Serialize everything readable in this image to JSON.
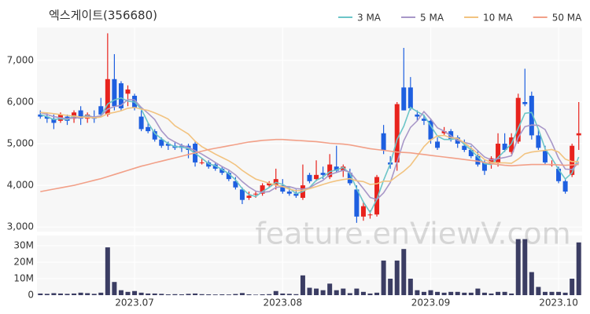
{
  "chart_data": {
    "type": "candlestick",
    "title": "엑스게이트(356680)",
    "watermark": "feature.enViewV.com",
    "categories": [
      null,
      null,
      null,
      null,
      null,
      null,
      null,
      null,
      null,
      null,
      null,
      null,
      null,
      null,
      null,
      null,
      null,
      null,
      null,
      null,
      null,
      null,
      null,
      null,
      null,
      null,
      null,
      null,
      null,
      null,
      null,
      null,
      null,
      null,
      null,
      null,
      null,
      null,
      null,
      null,
      null,
      null,
      null,
      null,
      null,
      null,
      null,
      null,
      null,
      null,
      null,
      null,
      null,
      null,
      null,
      null,
      null,
      null,
      null,
      null,
      null,
      null,
      null,
      null,
      null,
      null,
      null,
      null,
      null,
      null,
      null,
      null,
      null,
      null,
      null,
      null,
      null,
      null,
      null,
      null,
      null
    ],
    "xticks": [
      {
        "value": 14,
        "label": "2023.07"
      },
      {
        "value": 36,
        "label": "2023.08"
      },
      {
        "value": 58,
        "label": "2023.09"
      },
      {
        "value": 77,
        "label": "2023.10"
      }
    ],
    "open": [
      5700,
      5650,
      5600,
      5550,
      5650,
      5600,
      5800,
      5600,
      5650,
      5900,
      5700,
      6550,
      6450,
      6200,
      6150,
      5650,
      5400,
      5300,
      5100,
      5000,
      4950,
      4950,
      4950,
      5000,
      4550,
      4550,
      4500,
      4400,
      4300,
      4100,
      3900,
      3700,
      3800,
      3800,
      4000,
      4000,
      4000,
      3850,
      3800,
      3700,
      4250,
      4150,
      4300,
      4200,
      4450,
      4350,
      4300,
      3900,
      3250,
      3300,
      3300,
      5250,
      4550,
      4550,
      6350,
      6350,
      5700,
      5600,
      5550,
      5050,
      5250,
      5300,
      5150,
      4950,
      4850,
      4700,
      4550,
      4500,
      4550,
      5000,
      4800,
      5050,
      6000,
      6150,
      5200,
      4850,
      4500,
      4400,
      4100,
      4250,
      5200
    ],
    "high": [
      5800,
      5750,
      5700,
      5750,
      5700,
      5800,
      5900,
      5750,
      5800,
      6100,
      7650,
      7150,
      6500,
      6400,
      6200,
      5800,
      5500,
      5350,
      5150,
      5050,
      5050,
      5000,
      5000,
      5050,
      4650,
      4600,
      4550,
      4450,
      4350,
      4200,
      3950,
      3850,
      3850,
      4050,
      4100,
      4400,
      4150,
      3950,
      3900,
      4500,
      4300,
      4600,
      4450,
      4750,
      4950,
      4500,
      4400,
      4000,
      3600,
      3400,
      4250,
      5450,
      4700,
      6000,
      7300,
      6600,
      5800,
      5700,
      5600,
      5150,
      5400,
      5350,
      5200,
      5100,
      4950,
      4850,
      4600,
      4700,
      5250,
      5250,
      5250,
      6200,
      6800,
      6250,
      5350,
      4950,
      4600,
      4450,
      4150,
      5000,
      6000
    ],
    "low": [
      5600,
      5500,
      5350,
      5500,
      5450,
      5500,
      5450,
      5500,
      5500,
      5650,
      5650,
      5800,
      5800,
      5900,
      5800,
      5300,
      5250,
      5050,
      4900,
      4850,
      4850,
      4800,
      4650,
      4450,
      4500,
      4400,
      4350,
      4250,
      4100,
      3900,
      3550,
      3650,
      3700,
      3750,
      3950,
      3900,
      3800,
      3750,
      3700,
      3650,
      4050,
      4100,
      4150,
      4150,
      4300,
      4200,
      4000,
      3100,
      3150,
      3200,
      3250,
      4750,
      4400,
      4350,
      5800,
      5800,
      5550,
      5450,
      5000,
      4850,
      5200,
      5050,
      4900,
      4800,
      4650,
      4450,
      4250,
      4400,
      4450,
      4800,
      4750,
      5000,
      5900,
      5100,
      4850,
      4500,
      4450,
      4050,
      3800,
      4200,
      4850
    ],
    "close": [
      5650,
      5600,
      5500,
      5700,
      5550,
      5750,
      5600,
      5700,
      5600,
      5700,
      6550,
      5900,
      5850,
      6300,
      5850,
      5350,
      5300,
      5100,
      4950,
      4950,
      4900,
      4900,
      4850,
      4550,
      4550,
      4450,
      4400,
      4300,
      4150,
      3950,
      3650,
      3750,
      3800,
      4000,
      4050,
      4150,
      3850,
      3800,
      3750,
      4000,
      4100,
      4250,
      4250,
      4500,
      4350,
      4450,
      4050,
      3250,
      3500,
      3300,
      4200,
      4850,
      4500,
      5950,
      5800,
      5850,
      5650,
      5550,
      5100,
      4900,
      5300,
      5100,
      5000,
      4850,
      4700,
      4500,
      4350,
      4650,
      5000,
      4850,
      5150,
      6100,
      5950,
      5200,
      4900,
      4550,
      4500,
      4100,
      3850,
      4950,
      5250
    ],
    "volume": [
      1000000,
      800000,
      1200000,
      1000000,
      800000,
      1000000,
      1500000,
      1200000,
      800000,
      1500000,
      29000000,
      8000000,
      3000000,
      2000000,
      2500000,
      1500000,
      1000000,
      1000000,
      800000,
      500000,
      600000,
      500000,
      800000,
      1000000,
      600000,
      500000,
      400000,
      500000,
      400000,
      700000,
      1300000,
      500000,
      300000,
      500000,
      600000,
      2500000,
      1000000,
      800000,
      600000,
      12000000,
      4500000,
      4000000,
      3000000,
      7000000,
      3000000,
      4000000,
      1200000,
      4000000,
      2000000,
      1000000,
      1500000,
      21000000,
      10000000,
      21000000,
      28000000,
      10000000,
      3000000,
      2000000,
      3000000,
      2000000,
      1500000,
      2000000,
      2000000,
      1500000,
      1500000,
      4000000,
      1500000,
      1000000,
      2000000,
      2000000,
      1000000,
      34000000,
      34000000,
      14000000,
      5000000,
      2000000,
      2000000,
      2000000,
      1500000,
      10000000,
      32000000
    ],
    "up_color": "#e8231d",
    "down_color": "#1e5fe0",
    "volume_color": "#3b3d63",
    "ylim": [
      2890,
      7790
    ],
    "yticks": [
      {
        "value": 3000,
        "label": "3,000"
      },
      {
        "value": 4000,
        "label": "4,000"
      },
      {
        "value": 5000,
        "label": "5,000"
      },
      {
        "value": 6000,
        "label": "6,000"
      },
      {
        "value": 7000,
        "label": "7,000"
      }
    ],
    "volume_ylim": [
      0,
      36200000
    ],
    "volume_yticks": [
      0,
      {
        "value": 10000000,
        "label": "10M"
      },
      {
        "value": 20000000,
        "label": "20M"
      },
      {
        "value": 30000000,
        "label": "30M"
      }
    ],
    "grid": true,
    "legend": "top-right",
    "ma": [
      {
        "name": "3 MA",
        "color": "#6cc5c8",
        "values": [
          5700,
          5650,
          5580,
          5600,
          5580,
          5670,
          5630,
          5680,
          5630,
          5670,
          5950,
          6050,
          6100,
          6020,
          6000,
          5830,
          5500,
          5250,
          5120,
          5000,
          4930,
          4920,
          4880,
          4770,
          4650,
          4520,
          4470,
          4380,
          4280,
          4130,
          3920,
          3780,
          3730,
          3850,
          3950,
          4070,
          4020,
          3930,
          3800,
          3850,
          3950,
          4120,
          4200,
          4330,
          4370,
          4430,
          4280,
          3920,
          3600,
          3350,
          3670,
          4120,
          4520,
          5100,
          5420,
          5870,
          5770,
          5680,
          5430,
          5180,
          5100,
          5100,
          5130,
          4980,
          4850,
          4680,
          4520,
          4500,
          4670,
          4830,
          5000,
          5370,
          5730,
          5750,
          5350,
          4880,
          4650,
          4380,
          4150,
          4300,
          4680
        ]
      },
      {
        "name": "5 MA",
        "color": "#a897c8",
        "values": [
          5750,
          5700,
          5650,
          5620,
          5600,
          5620,
          5620,
          5660,
          5640,
          5670,
          5830,
          5890,
          5920,
          6060,
          6050,
          5870,
          5730,
          5580,
          5310,
          5130,
          5040,
          4960,
          4910,
          4830,
          4750,
          4650,
          4550,
          4450,
          4370,
          4250,
          4090,
          3960,
          3860,
          3830,
          3850,
          3950,
          3970,
          3970,
          3920,
          3910,
          3940,
          4040,
          4120,
          4260,
          4310,
          4360,
          4320,
          4120,
          3920,
          3710,
          3660,
          3820,
          4070,
          4560,
          5070,
          5390,
          5550,
          5770,
          5590,
          5380,
          5300,
          5190,
          5080,
          5030,
          4990,
          4830,
          4680,
          4610,
          4640,
          4670,
          4710,
          5150,
          5410,
          5450,
          5440,
          5340,
          5020,
          4650,
          4390,
          4380,
          4550
        ]
      },
      {
        "name": "10 MA",
        "color": "#f2c380",
        "values": [
          5750,
          5740,
          5720,
          5700,
          5680,
          5660,
          5640,
          5630,
          5620,
          5640,
          5720,
          5750,
          5790,
          5850,
          5870,
          5830,
          5800,
          5740,
          5670,
          5590,
          5430,
          5330,
          5230,
          5060,
          4930,
          4840,
          4750,
          4670,
          4590,
          4490,
          4360,
          4250,
          4150,
          4100,
          4050,
          4010,
          3970,
          3910,
          3870,
          3880,
          3920,
          3970,
          4020,
          4070,
          4110,
          4140,
          4160,
          4110,
          4090,
          4020,
          4040,
          4100,
          4100,
          4220,
          4340,
          4480,
          4700,
          4930,
          5090,
          5190,
          5200,
          5140,
          5130,
          5020,
          4900,
          4760,
          4620,
          4550,
          4540,
          4540,
          4530,
          4630,
          4760,
          4800,
          4820,
          4840,
          4860,
          4800,
          4630,
          4570,
          4570
        ]
      },
      {
        "name": "50 MA",
        "color": "#f2a088",
        "values": [
          3850,
          3880,
          3910,
          3940,
          3970,
          4000,
          4040,
          4080,
          4120,
          4160,
          4210,
          4260,
          4310,
          4360,
          4410,
          4460,
          4500,
          4540,
          4580,
          4620,
          4660,
          4700,
          4740,
          4780,
          4820,
          4860,
          4890,
          4920,
          4950,
          4980,
          5010,
          5040,
          5060,
          5080,
          5090,
          5100,
          5100,
          5090,
          5080,
          5070,
          5060,
          5050,
          5030,
          5010,
          5000,
          4990,
          4970,
          4940,
          4910,
          4880,
          4860,
          4840,
          4820,
          4800,
          4790,
          4780,
          4760,
          4740,
          4720,
          4700,
          4680,
          4660,
          4640,
          4620,
          4600,
          4580,
          4550,
          4520,
          4500,
          4480,
          4470,
          4480,
          4490,
          4500,
          4500,
          4500,
          4500,
          4490,
          4480,
          4490,
          4500
        ]
      }
    ]
  }
}
